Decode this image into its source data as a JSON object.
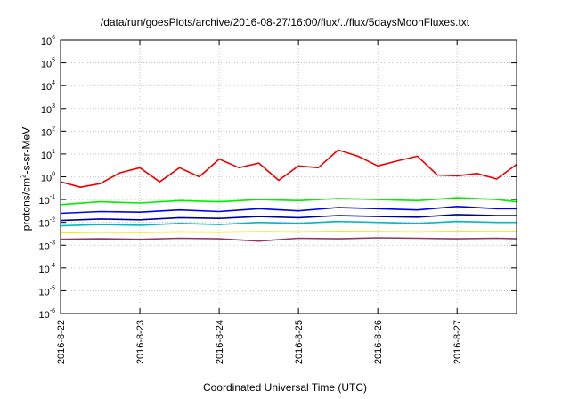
{
  "chart_data": {
    "type": "line",
    "title": "/data/run/goesPlots/archive/2016-08-27/16:00/flux/../flux/5daysMoonFluxes.txt",
    "xlabel": "Coordinated Universal Time (UTC)",
    "ylabel": {
      "prefix": "protons/cm",
      "exponent": "2",
      "suffix": "-s-sr-MeV"
    },
    "x_ticks": [
      "2016-8-22",
      "2016-8-23",
      "2016-8-24",
      "2016-8-25",
      "2016-8-26",
      "2016-8-27"
    ],
    "x_range": [
      "2016-8-22",
      "2016-8-27 18:00"
    ],
    "y_scale": "log",
    "ylim": [
      1e-06,
      1000000.0
    ],
    "y_ticks": [
      {
        "base": "10",
        "exp": "6",
        "value": 1000000.0
      },
      {
        "base": "10",
        "exp": "5",
        "value": 100000.0
      },
      {
        "base": "10",
        "exp": "4",
        "value": 10000.0
      },
      {
        "base": "10",
        "exp": "3",
        "value": 1000.0
      },
      {
        "base": "10",
        "exp": "2",
        "value": 100.0
      },
      {
        "base": "10",
        "exp": "1",
        "value": 10
      },
      {
        "base": "10",
        "exp": "0",
        "value": 1
      },
      {
        "base": "10",
        "exp": "-1",
        "value": 0.1
      },
      {
        "base": "10",
        "exp": "-2",
        "value": 0.01
      },
      {
        "base": "10",
        "exp": "-3",
        "value": 0.001
      },
      {
        "base": "10",
        "exp": "-4",
        "value": 0.0001
      },
      {
        "base": "10",
        "exp": "-5",
        "value": 1e-05
      },
      {
        "base": "10",
        "exp": "-6",
        "value": 1e-06
      }
    ],
    "grid": true,
    "legend": "none",
    "series": [
      {
        "color": "#ee0000",
        "x": [
          "2016-8-22 00:00",
          "2016-8-22 06:00",
          "2016-8-22 12:00",
          "2016-8-22 18:00",
          "2016-8-23 00:00",
          "2016-8-23 06:00",
          "2016-8-23 12:00",
          "2016-8-23 18:00",
          "2016-8-24 00:00",
          "2016-8-24 06:00",
          "2016-8-24 12:00",
          "2016-8-24 18:00",
          "2016-8-25 00:00",
          "2016-8-25 06:00",
          "2016-8-25 12:00",
          "2016-8-25 18:00",
          "2016-8-26 00:00",
          "2016-8-26 06:00",
          "2016-8-26 12:00",
          "2016-8-26 18:00",
          "2016-8-27 00:00",
          "2016-8-27 06:00",
          "2016-8-27 12:00",
          "2016-8-27 18:00"
        ],
        "values": [
          0.6,
          0.35,
          0.5,
          1.5,
          2.5,
          0.6,
          2.5,
          1.0,
          6,
          2.5,
          4,
          0.7,
          3,
          2.5,
          15,
          8,
          3,
          5,
          8,
          1.2,
          1.1,
          1.4,
          0.8,
          3.5
        ]
      },
      {
        "color": "#00ee00",
        "x": [
          "2016-8-22 00:00",
          "2016-8-22 12:00",
          "2016-8-23 00:00",
          "2016-8-23 12:00",
          "2016-8-24 00:00",
          "2016-8-24 12:00",
          "2016-8-25 00:00",
          "2016-8-25 12:00",
          "2016-8-26 00:00",
          "2016-8-26 12:00",
          "2016-8-27 00:00",
          "2016-8-27 12:00",
          "2016-8-27 18:00"
        ],
        "values": [
          0.06,
          0.08,
          0.07,
          0.09,
          0.08,
          0.1,
          0.09,
          0.11,
          0.1,
          0.09,
          0.12,
          0.1,
          0.08
        ]
      },
      {
        "color": "#0000ee",
        "x": [
          "2016-8-22 00:00",
          "2016-8-22 12:00",
          "2016-8-23 00:00",
          "2016-8-23 12:00",
          "2016-8-24 00:00",
          "2016-8-24 12:00",
          "2016-8-25 00:00",
          "2016-8-25 12:00",
          "2016-8-26 00:00",
          "2016-8-26 12:00",
          "2016-8-27 00:00",
          "2016-8-27 12:00",
          "2016-8-27 18:00"
        ],
        "values": [
          0.025,
          0.03,
          0.028,
          0.035,
          0.03,
          0.04,
          0.032,
          0.045,
          0.04,
          0.035,
          0.05,
          0.04,
          0.04
        ]
      },
      {
        "color": "#000099",
        "x": [
          "2016-8-22 00:00",
          "2016-8-22 12:00",
          "2016-8-23 00:00",
          "2016-8-23 12:00",
          "2016-8-24 00:00",
          "2016-8-24 12:00",
          "2016-8-25 00:00",
          "2016-8-25 12:00",
          "2016-8-26 00:00",
          "2016-8-26 12:00",
          "2016-8-27 00:00",
          "2016-8-27 12:00",
          "2016-8-27 18:00"
        ],
        "values": [
          0.012,
          0.014,
          0.013,
          0.016,
          0.015,
          0.018,
          0.016,
          0.02,
          0.018,
          0.017,
          0.022,
          0.02,
          0.02
        ]
      },
      {
        "color": "#00bbbb",
        "x": [
          "2016-8-22 00:00",
          "2016-8-22 12:00",
          "2016-8-23 00:00",
          "2016-8-23 12:00",
          "2016-8-24 00:00",
          "2016-8-24 12:00",
          "2016-8-25 00:00",
          "2016-8-25 12:00",
          "2016-8-26 00:00",
          "2016-8-26 12:00",
          "2016-8-27 00:00",
          "2016-8-27 12:00",
          "2016-8-27 18:00"
        ],
        "values": [
          0.007,
          0.008,
          0.0075,
          0.009,
          0.008,
          0.01,
          0.009,
          0.011,
          0.01,
          0.009,
          0.011,
          0.01,
          0.01
        ]
      },
      {
        "color": "#eeee00",
        "x": [
          "2016-8-22 00:00",
          "2016-8-22 12:00",
          "2016-8-23 00:00",
          "2016-8-23 12:00",
          "2016-8-24 00:00",
          "2016-8-24 12:00",
          "2016-8-25 00:00",
          "2016-8-25 12:00",
          "2016-8-26 00:00",
          "2016-8-26 12:00",
          "2016-8-27 00:00",
          "2016-8-27 12:00",
          "2016-8-27 18:00"
        ],
        "values": [
          0.0035,
          0.0037,
          0.0036,
          0.0038,
          0.0037,
          0.0039,
          0.0038,
          0.004,
          0.0039,
          0.0038,
          0.004,
          0.0039,
          0.004
        ]
      },
      {
        "color": "#993366",
        "x": [
          "2016-8-22 00:00",
          "2016-8-22 12:00",
          "2016-8-23 00:00",
          "2016-8-23 12:00",
          "2016-8-24 00:00",
          "2016-8-24 12:00",
          "2016-8-25 00:00",
          "2016-8-25 12:00",
          "2016-8-26 00:00",
          "2016-8-26 12:00",
          "2016-8-27 00:00",
          "2016-8-27 12:00",
          "2016-8-27 18:00"
        ],
        "values": [
          0.0018,
          0.0019,
          0.0018,
          0.002,
          0.0019,
          0.0015,
          0.002,
          0.0019,
          0.0021,
          0.002,
          0.0019,
          0.002,
          0.0019
        ]
      }
    ]
  }
}
